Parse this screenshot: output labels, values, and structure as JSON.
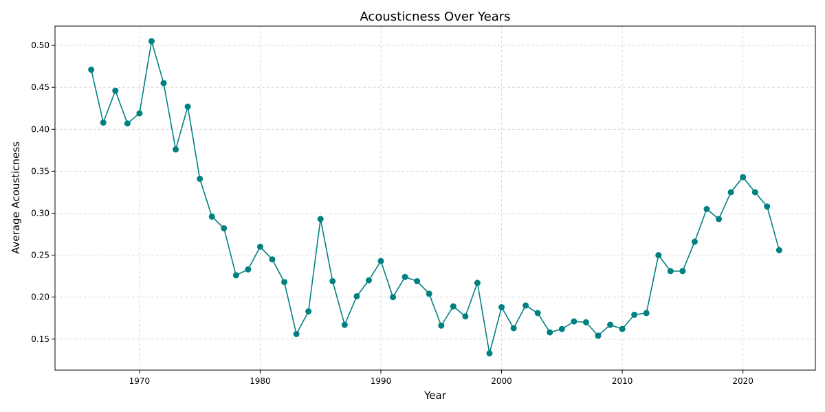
{
  "chart_data": {
    "type": "line",
    "title": "Acousticness Over Years",
    "xlabel": "Year",
    "ylabel": "Average Acousticness",
    "xlim": [
      1963,
      2026
    ],
    "ylim": [
      0.113,
      0.523
    ],
    "xticks": [
      1970,
      1980,
      1990,
      2000,
      2010,
      2020
    ],
    "yticks": [
      0.15,
      0.2,
      0.25,
      0.3,
      0.35,
      0.4,
      0.45,
      0.5
    ],
    "ytick_labels": [
      "0.15",
      "0.20",
      "0.25",
      "0.30",
      "0.35",
      "0.40",
      "0.45",
      "0.50"
    ],
    "grid": true,
    "line_color": "#008080",
    "series": [
      {
        "x": [
          1966,
          1967,
          1968,
          1969,
          1970,
          1971,
          1972,
          1973,
          1974,
          1975,
          1976,
          1977,
          1978,
          1979,
          1980,
          1981,
          1982,
          1983,
          1984,
          1985,
          1986,
          1987,
          1988,
          1989,
          1990,
          1991,
          1992,
          1993,
          1994,
          1995,
          1996,
          1997,
          1998,
          1999,
          2000,
          2001,
          2002,
          2003,
          2004,
          2005,
          2006,
          2007,
          2008,
          2009,
          2010,
          2011,
          2012,
          2013,
          2014,
          2015,
          2016,
          2017,
          2018,
          2019,
          2020,
          2021,
          2022,
          2023
        ],
        "values": [
          0.471,
          0.408,
          0.446,
          0.407,
          0.419,
          0.505,
          0.455,
          0.376,
          0.427,
          0.341,
          0.296,
          0.282,
          0.226,
          0.233,
          0.26,
          0.245,
          0.218,
          0.156,
          0.183,
          0.293,
          0.219,
          0.167,
          0.201,
          0.22,
          0.243,
          0.2,
          0.224,
          0.219,
          0.204,
          0.166,
          0.189,
          0.177,
          0.217,
          0.133,
          0.188,
          0.163,
          0.19,
          0.181,
          0.158,
          0.162,
          0.171,
          0.17,
          0.154,
          0.167,
          0.162,
          0.179,
          0.181,
          0.25,
          0.231,
          0.231,
          0.266,
          0.305,
          0.293,
          0.325,
          0.343,
          0.325,
          0.308,
          0.256
        ]
      }
    ]
  }
}
